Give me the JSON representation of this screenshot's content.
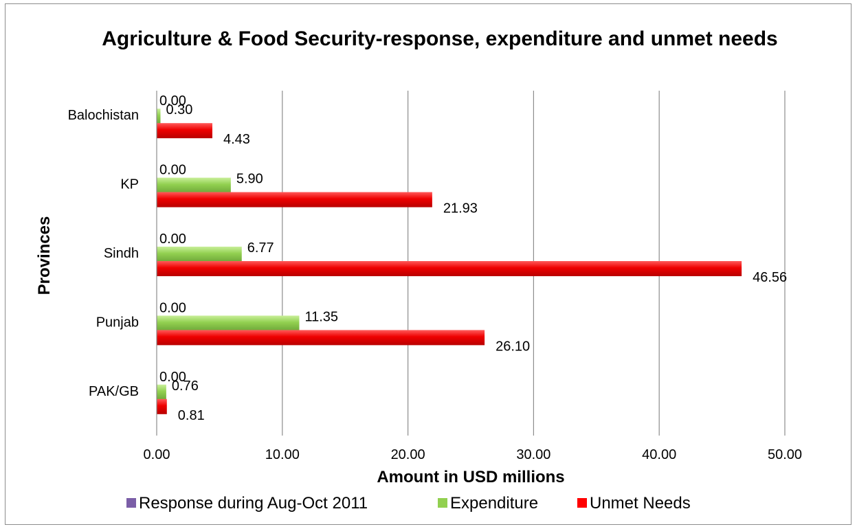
{
  "chart_data": {
    "type": "bar",
    "orientation": "horizontal",
    "title": "Agriculture & Food Security-response, expenditure and unmet needs",
    "xlabel": "Amount in USD millions",
    "ylabel": "Provinces",
    "xlim": [
      0,
      50
    ],
    "x_ticks": [
      "0.00",
      "10.00",
      "20.00",
      "30.00",
      "40.00",
      "50.00"
    ],
    "grid": "vertical",
    "legend_position": "bottom",
    "categories": [
      "Balochistan",
      "KP",
      "Sindh",
      "Punjab",
      "PAK/GB"
    ],
    "series": [
      {
        "name": "Response during Aug-Oct 2011",
        "color": "#7b5ea7",
        "values": [
          0.0,
          0.0,
          0.0,
          0.0,
          0.0
        ],
        "labels": [
          "0.00",
          "0.00",
          "0.00",
          "0.00",
          "0.00"
        ]
      },
      {
        "name": "Expenditure",
        "color": "#92d050",
        "values": [
          0.3,
          5.9,
          6.77,
          11.35,
          0.76
        ],
        "labels": [
          "0.30",
          "5.90",
          "6.77",
          "11.35",
          "0.76"
        ]
      },
      {
        "name": "Unmet Needs",
        "color": "#ff0000",
        "values": [
          4.43,
          21.93,
          46.56,
          26.1,
          0.81
        ],
        "labels": [
          "4.43",
          "21.93",
          "46.56",
          "26.10",
          "0.81"
        ]
      }
    ]
  }
}
